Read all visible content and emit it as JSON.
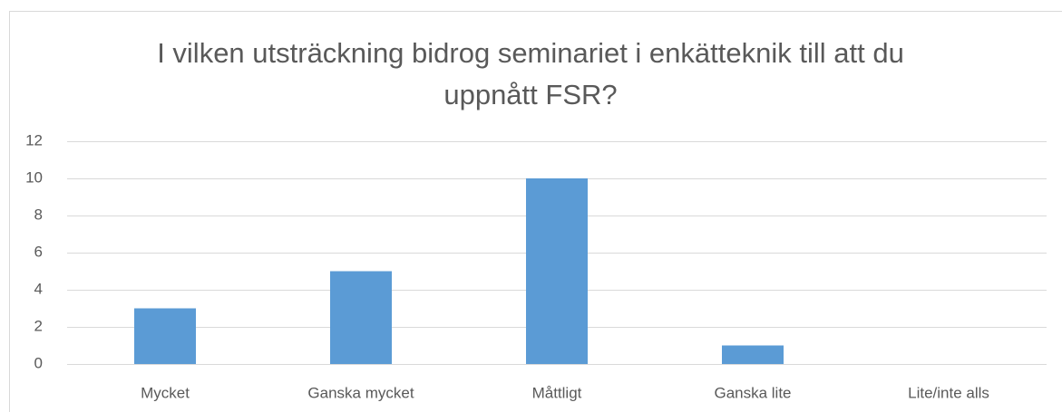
{
  "chart_data": {
    "type": "bar",
    "title": "I vilken utsträckning bidrog seminariet i enkätteknik till att du uppnått FSR?",
    "categories": [
      "Mycket",
      "Ganska mycket",
      "Måttligt",
      "Ganska lite",
      "Lite/inte alls"
    ],
    "values": [
      3,
      5,
      10,
      1,
      0
    ],
    "color": "#5b9bd5",
    "ylim": [
      0,
      12
    ],
    "yticks": [
      0,
      2,
      4,
      6,
      8,
      10,
      12
    ],
    "grid": true
  }
}
